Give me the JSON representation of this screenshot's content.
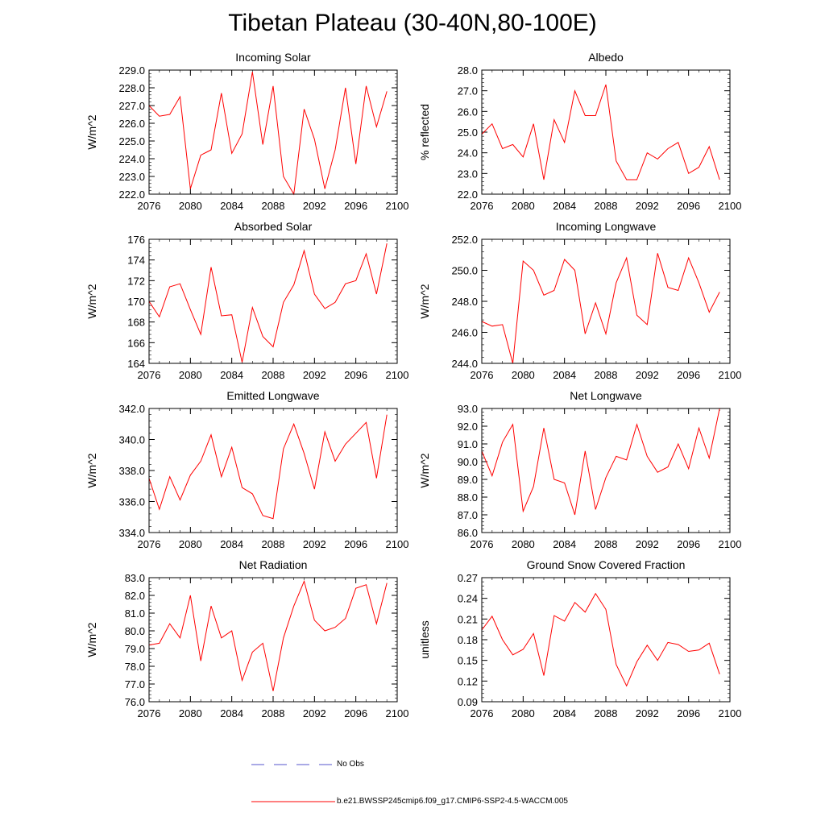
{
  "page": {
    "title": "Tibetan Plateau (30-40N,80-100E)"
  },
  "legend": {
    "entries": [
      {
        "label": "No Obs",
        "color": "#5555cc",
        "style": "dashed"
      },
      {
        "label": "b.e21.BWSSP245cmip6.f09_g17.CMIP6-SSP2-4.5-WACCM.005",
        "color": "#ff0000",
        "style": "solid"
      }
    ]
  },
  "chart_data": [
    {
      "type": "line",
      "title": "Incoming Solar",
      "ylabel": "W/m^2",
      "xlim": [
        2076,
        2100
      ],
      "ylim": [
        222,
        229
      ],
      "x_ticks": [
        2076,
        2080,
        2084,
        2088,
        2092,
        2096,
        2100
      ],
      "y_ticks": [
        "222.0",
        "223.0",
        "224.0",
        "225.0",
        "226.0",
        "227.0",
        "228.0",
        "229.0"
      ],
      "y_tick_values": [
        222,
        223,
        224,
        225,
        226,
        227,
        228,
        229
      ],
      "series": [
        {
          "name": "b.e21.BWSSP245cmip6.f09_g17.CMIP6-SSP2-4.5-WACCM.005",
          "color": "#ff0000",
          "x": [
            2076,
            2077,
            2078,
            2079,
            2080,
            2081,
            2082,
            2083,
            2084,
            2085,
            2086,
            2087,
            2088,
            2089,
            2090,
            2091,
            2092,
            2093,
            2094,
            2095,
            2096,
            2097,
            2098,
            2099
          ],
          "y": [
            227.0,
            226.4,
            226.5,
            227.5,
            222.3,
            224.2,
            224.5,
            227.7,
            224.3,
            225.4,
            228.9,
            224.8,
            228.1,
            223.0,
            222.0,
            226.8,
            225.1,
            222.3,
            224.5,
            228.0,
            223.7,
            228.1,
            225.8,
            227.8
          ]
        }
      ]
    },
    {
      "type": "line",
      "title": "Albedo",
      "ylabel": "% reflected",
      "xlim": [
        2076,
        2100
      ],
      "ylim": [
        22,
        28
      ],
      "x_ticks": [
        2076,
        2080,
        2084,
        2088,
        2092,
        2096,
        2100
      ],
      "y_ticks": [
        "22.0",
        "23.0",
        "24.0",
        "25.0",
        "26.0",
        "27.0",
        "28.0"
      ],
      "y_tick_values": [
        22,
        23,
        24,
        25,
        26,
        27,
        28
      ],
      "series": [
        {
          "name": "b.e21.BWSSP245cmip6.f09_g17.CMIP6-SSP2-4.5-WACCM.005",
          "color": "#ff0000",
          "x": [
            2076,
            2077,
            2078,
            2079,
            2080,
            2081,
            2082,
            2083,
            2084,
            2085,
            2086,
            2087,
            2088,
            2089,
            2090,
            2091,
            2092,
            2093,
            2094,
            2095,
            2096,
            2097,
            2098,
            2099
          ],
          "y": [
            24.9,
            25.4,
            24.2,
            24.4,
            23.8,
            25.4,
            22.7,
            25.6,
            24.5,
            27.0,
            25.8,
            25.8,
            27.3,
            23.6,
            22.7,
            22.7,
            24.0,
            23.7,
            24.2,
            24.5,
            23.0,
            23.3,
            24.3,
            22.7
          ]
        }
      ]
    },
    {
      "type": "line",
      "title": "Absorbed Solar",
      "ylabel": "W/m^2",
      "xlim": [
        2076,
        2100
      ],
      "ylim": [
        164,
        176
      ],
      "x_ticks": [
        2076,
        2080,
        2084,
        2088,
        2092,
        2096,
        2100
      ],
      "y_ticks": [
        "164",
        "166",
        "168",
        "170",
        "172",
        "174",
        "176"
      ],
      "y_tick_values": [
        164,
        166,
        168,
        170,
        172,
        174,
        176
      ],
      "series": [
        {
          "name": "b.e21.BWSSP245cmip6.f09_g17.CMIP6-SSP2-4.5-WACCM.005",
          "color": "#ff0000",
          "x": [
            2076,
            2077,
            2078,
            2079,
            2080,
            2081,
            2082,
            2083,
            2084,
            2085,
            2086,
            2087,
            2088,
            2089,
            2090,
            2091,
            2092,
            2093,
            2094,
            2095,
            2096,
            2097,
            2098,
            2099
          ],
          "y": [
            170.0,
            168.5,
            171.4,
            171.7,
            169.2,
            166.8,
            173.3,
            168.6,
            168.7,
            164.1,
            169.4,
            166.6,
            165.6,
            169.9,
            171.6,
            174.9,
            170.7,
            169.3,
            169.9,
            171.7,
            172.0,
            174.6,
            170.7,
            175.6
          ]
        }
      ]
    },
    {
      "type": "line",
      "title": "Incoming Longwave",
      "ylabel": "W/m^2",
      "xlim": [
        2076,
        2100
      ],
      "ylim": [
        244,
        252
      ],
      "x_ticks": [
        2076,
        2080,
        2084,
        2088,
        2092,
        2096,
        2100
      ],
      "y_ticks": [
        "244.0",
        "246.0",
        "248.0",
        "250.0",
        "252.0"
      ],
      "y_tick_values": [
        244,
        246,
        248,
        250,
        252
      ],
      "series": [
        {
          "name": "b.e21.BWSSP245cmip6.f09_g17.CMIP6-SSP2-4.5-WACCM.005",
          "color": "#ff0000",
          "x": [
            2076,
            2077,
            2078,
            2079,
            2080,
            2081,
            2082,
            2083,
            2084,
            2085,
            2086,
            2087,
            2088,
            2089,
            2090,
            2091,
            2092,
            2093,
            2094,
            2095,
            2096,
            2097,
            2098,
            2099
          ],
          "y": [
            246.7,
            246.4,
            246.5,
            244.0,
            250.6,
            250.0,
            248.4,
            248.7,
            250.7,
            250.0,
            245.9,
            247.9,
            245.9,
            249.2,
            250.8,
            247.1,
            246.5,
            251.1,
            248.9,
            248.7,
            250.8,
            249.2,
            247.3,
            248.6
          ]
        }
      ]
    },
    {
      "type": "line",
      "title": "Emitted Longwave",
      "ylabel": "W/m^2",
      "xlim": [
        2076,
        2100
      ],
      "ylim": [
        334,
        342
      ],
      "x_ticks": [
        2076,
        2080,
        2084,
        2088,
        2092,
        2096,
        2100
      ],
      "y_ticks": [
        "334.0",
        "336.0",
        "338.0",
        "340.0",
        "342.0"
      ],
      "y_tick_values": [
        334,
        336,
        338,
        340,
        342
      ],
      "series": [
        {
          "name": "b.e21.BWSSP245cmip6.f09_g17.CMIP6-SSP2-4.5-WACCM.005",
          "color": "#ff0000",
          "x": [
            2076,
            2077,
            2078,
            2079,
            2080,
            2081,
            2082,
            2083,
            2084,
            2085,
            2086,
            2087,
            2088,
            2089,
            2090,
            2091,
            2092,
            2093,
            2094,
            2095,
            2096,
            2097,
            2098,
            2099
          ],
          "y": [
            337.5,
            335.5,
            337.6,
            336.1,
            337.7,
            338.6,
            340.3,
            337.6,
            339.5,
            336.9,
            336.5,
            335.1,
            334.9,
            339.4,
            341.0,
            339.1,
            336.8,
            340.5,
            338.6,
            339.7,
            340.4,
            341.1,
            337.5,
            341.6
          ]
        }
      ]
    },
    {
      "type": "line",
      "title": "Net Longwave",
      "ylabel": "W/m^2",
      "xlim": [
        2076,
        2100
      ],
      "ylim": [
        86,
        93
      ],
      "x_ticks": [
        2076,
        2080,
        2084,
        2088,
        2092,
        2096,
        2100
      ],
      "y_ticks": [
        "86.0",
        "87.0",
        "88.0",
        "89.0",
        "90.0",
        "91.0",
        "92.0",
        "93.0"
      ],
      "y_tick_values": [
        86,
        87,
        88,
        89,
        90,
        91,
        92,
        93
      ],
      "series": [
        {
          "name": "b.e21.BWSSP245cmip6.f09_g17.CMIP6-SSP2-4.5-WACCM.005",
          "color": "#ff0000",
          "x": [
            2076,
            2077,
            2078,
            2079,
            2080,
            2081,
            2082,
            2083,
            2084,
            2085,
            2086,
            2087,
            2088,
            2089,
            2090,
            2091,
            2092,
            2093,
            2094,
            2095,
            2096,
            2097,
            2098,
            2099
          ],
          "y": [
            90.6,
            89.2,
            91.1,
            92.1,
            87.2,
            88.6,
            91.9,
            89.0,
            88.8,
            87.0,
            90.6,
            87.3,
            89.1,
            90.3,
            90.1,
            92.1,
            90.3,
            89.4,
            89.7,
            91.0,
            89.6,
            91.9,
            90.2,
            93.0
          ]
        }
      ]
    },
    {
      "type": "line",
      "title": "Net Radiation",
      "ylabel": "W/m^2",
      "xlim": [
        2076,
        2100
      ],
      "ylim": [
        76,
        83
      ],
      "x_ticks": [
        2076,
        2080,
        2084,
        2088,
        2092,
        2096,
        2100
      ],
      "y_ticks": [
        "76.0",
        "77.0",
        "78.0",
        "79.0",
        "80.0",
        "81.0",
        "82.0",
        "83.0"
      ],
      "y_tick_values": [
        76,
        77,
        78,
        79,
        80,
        81,
        82,
        83
      ],
      "series": [
        {
          "name": "b.e21.BWSSP245cmip6.f09_g17.CMIP6-SSP2-4.5-WACCM.005",
          "color": "#ff0000",
          "x": [
            2076,
            2077,
            2078,
            2079,
            2080,
            2081,
            2082,
            2083,
            2084,
            2085,
            2086,
            2087,
            2088,
            2089,
            2090,
            2091,
            2092,
            2093,
            2094,
            2095,
            2096,
            2097,
            2098,
            2099
          ],
          "y": [
            79.2,
            79.3,
            80.4,
            79.6,
            82.0,
            78.3,
            81.4,
            79.6,
            80.0,
            77.2,
            78.8,
            79.3,
            76.6,
            79.6,
            81.4,
            82.8,
            80.6,
            80.0,
            80.2,
            80.7,
            82.4,
            82.6,
            80.4,
            82.7
          ]
        }
      ]
    },
    {
      "type": "line",
      "title": "Ground Snow Covered Fraction",
      "ylabel": "unitless",
      "xlim": [
        2076,
        2100
      ],
      "ylim": [
        0.09,
        0.27
      ],
      "x_ticks": [
        2076,
        2080,
        2084,
        2088,
        2092,
        2096,
        2100
      ],
      "y_ticks": [
        "0.09",
        "0.12",
        "0.15",
        "0.18",
        "0.21",
        "0.24",
        "0.27"
      ],
      "y_tick_values": [
        0.09,
        0.12,
        0.15,
        0.18,
        0.21,
        0.24,
        0.27
      ],
      "series": [
        {
          "name": "b.e21.BWSSP245cmip6.f09_g17.CMIP6-SSP2-4.5-WACCM.005",
          "color": "#ff0000",
          "x": [
            2076,
            2077,
            2078,
            2079,
            2080,
            2081,
            2082,
            2083,
            2084,
            2085,
            2086,
            2087,
            2088,
            2089,
            2090,
            2091,
            2092,
            2093,
            2094,
            2095,
            2096,
            2097,
            2098,
            2099
          ],
          "y": [
            0.194,
            0.214,
            0.18,
            0.158,
            0.166,
            0.189,
            0.128,
            0.215,
            0.207,
            0.234,
            0.22,
            0.247,
            0.224,
            0.144,
            0.113,
            0.148,
            0.172,
            0.15,
            0.176,
            0.173,
            0.163,
            0.165,
            0.175,
            0.13
          ]
        }
      ]
    }
  ]
}
